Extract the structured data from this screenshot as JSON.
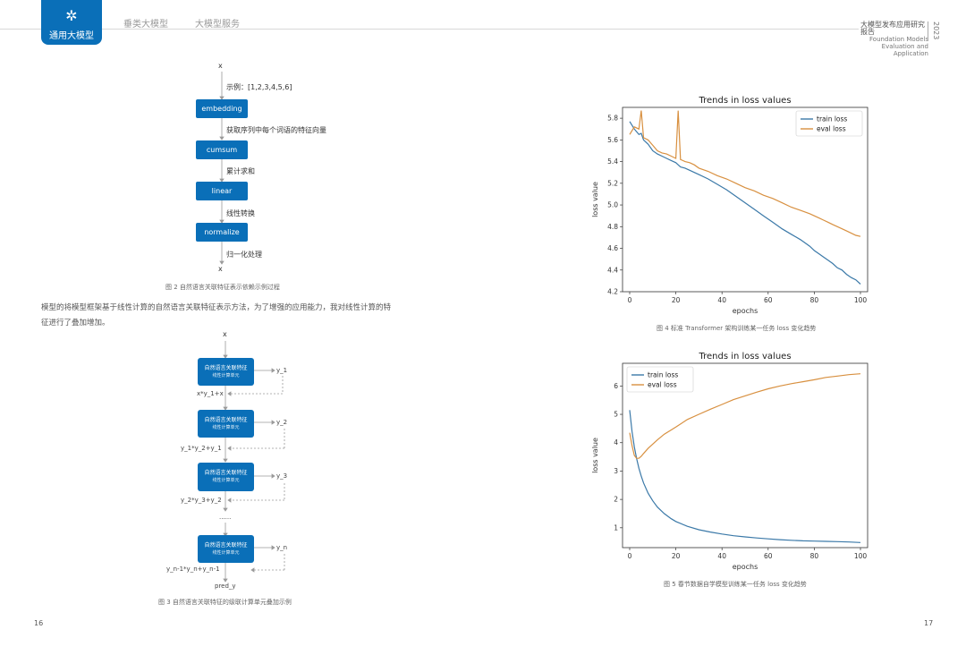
{
  "header": {
    "badge_icon": "gear-cluster-icon",
    "badge_label": "通用大模型",
    "nav": [
      "垂类大模型",
      "大模型服务"
    ],
    "right_title": "大模型发布应用研究报告",
    "right_sub1": "Foundation Models",
    "right_sub2": "Evaluation and Application",
    "right_year": "2023"
  },
  "fig2": {
    "top_x": "x",
    "bottom_x": "x",
    "example": "示例：[1,2,3,4,5,6]",
    "boxes": [
      "embedding",
      "cumsum",
      "linear",
      "normalize"
    ],
    "labels": [
      "获取序列中每个词语的特征向量",
      "累计求和",
      "线性转换",
      "归一化处理"
    ],
    "caption": "图 2   自然语言关联特征表示依赖示例过程"
  },
  "paragraph": [
    "模型的将模型框架基于线性计算的自然语言关联特征表示方法，为了增强的应用能力，我对线性计算的特",
    "征进行了叠加增加。"
  ],
  "fig3": {
    "top_x": "x",
    "box_title": "自然语言关联特征",
    "box_sub": "线性计算单元",
    "outputs": [
      "y_1",
      "y_2",
      "y_3",
      "y_n"
    ],
    "feedback": [
      "x*y_1+x",
      "y_1*y_2+y_1",
      "y_2*y_3+y_2",
      "y_n-1*y_n+y_n-1"
    ],
    "dots": "......",
    "pred": "pred_y",
    "caption": "图 3   自然语言关联特征的级联计算单元叠加示例"
  },
  "chart_data": [
    {
      "type": "line",
      "title": "Trends in loss values",
      "xlabel": "epochs",
      "ylabel": "loss value",
      "xlim": [
        0,
        100
      ],
      "ylim": [
        4.2,
        5.9
      ],
      "xticks": [
        0,
        20,
        40,
        60,
        80,
        100
      ],
      "yticks": [
        4.2,
        4.4,
        4.6,
        4.8,
        5.0,
        5.2,
        5.4,
        5.6,
        5.8
      ],
      "legend": "top-right",
      "x": [
        0,
        2,
        4,
        5,
        6,
        8,
        10,
        12,
        14,
        16,
        18,
        20,
        21,
        22,
        24,
        26,
        28,
        30,
        34,
        38,
        42,
        46,
        50,
        54,
        58,
        62,
        66,
        70,
        74,
        78,
        80,
        82,
        84,
        86,
        88,
        90,
        92,
        94,
        96,
        98,
        100
      ],
      "series": [
        {
          "name": "train loss",
          "color": "#3b79a8",
          "values": [
            5.77,
            5.7,
            5.65,
            5.66,
            5.6,
            5.56,
            5.5,
            5.47,
            5.45,
            5.43,
            5.41,
            5.39,
            5.37,
            5.35,
            5.34,
            5.32,
            5.3,
            5.28,
            5.24,
            5.19,
            5.14,
            5.08,
            5.02,
            4.96,
            4.9,
            4.84,
            4.78,
            4.73,
            4.68,
            4.62,
            4.58,
            4.55,
            4.52,
            4.49,
            4.46,
            4.42,
            4.4,
            4.36,
            4.33,
            4.31,
            4.27
          ]
        },
        {
          "name": "eval loss",
          "color": "#d89040",
          "values": [
            5.65,
            5.72,
            5.7,
            5.87,
            5.62,
            5.6,
            5.55,
            5.5,
            5.48,
            5.47,
            5.45,
            5.43,
            5.87,
            5.42,
            5.4,
            5.39,
            5.37,
            5.34,
            5.31,
            5.27,
            5.24,
            5.2,
            5.16,
            5.13,
            5.09,
            5.06,
            5.02,
            4.98,
            4.95,
            4.92,
            4.9,
            4.88,
            4.86,
            4.84,
            4.82,
            4.8,
            4.78,
            4.76,
            4.74,
            4.72,
            4.71
          ]
        }
      ],
      "caption": "图 4   标准 Transformer 架构训练某一任务 loss 变化趋势"
    },
    {
      "type": "line",
      "title": "Trends in loss values",
      "xlabel": "epochs",
      "ylabel": "loss value",
      "xlim": [
        0,
        100
      ],
      "ylim": [
        0.3,
        6.8
      ],
      "xticks": [
        0,
        20,
        40,
        60,
        80,
        100
      ],
      "yticks": [
        1,
        2,
        3,
        4,
        5,
        6
      ],
      "legend": "top-left",
      "x": [
        0,
        1,
        2,
        3,
        4,
        5,
        6,
        8,
        10,
        12,
        15,
        18,
        20,
        25,
        30,
        35,
        40,
        45,
        50,
        55,
        60,
        65,
        70,
        75,
        80,
        85,
        90,
        95,
        100
      ],
      "series": [
        {
          "name": "train loss",
          "color": "#3b79a8",
          "values": [
            5.15,
            4.4,
            3.85,
            3.45,
            3.1,
            2.82,
            2.58,
            2.22,
            1.95,
            1.73,
            1.5,
            1.32,
            1.22,
            1.05,
            0.93,
            0.85,
            0.78,
            0.72,
            0.68,
            0.64,
            0.61,
            0.58,
            0.56,
            0.54,
            0.53,
            0.52,
            0.51,
            0.5,
            0.48
          ]
        },
        {
          "name": "eval loss",
          "color": "#d89040",
          "values": [
            4.35,
            3.9,
            3.55,
            3.45,
            3.45,
            3.52,
            3.62,
            3.8,
            3.95,
            4.1,
            4.3,
            4.45,
            4.55,
            4.82,
            5.0,
            5.18,
            5.35,
            5.52,
            5.65,
            5.78,
            5.9,
            6.0,
            6.08,
            6.15,
            6.22,
            6.3,
            6.35,
            6.4,
            6.43
          ]
        }
      ],
      "caption": "图 5   春节数据自学模型训练某一任务 loss 变化趋势"
    }
  ],
  "page_numbers": {
    "left": "16",
    "right": "17"
  }
}
